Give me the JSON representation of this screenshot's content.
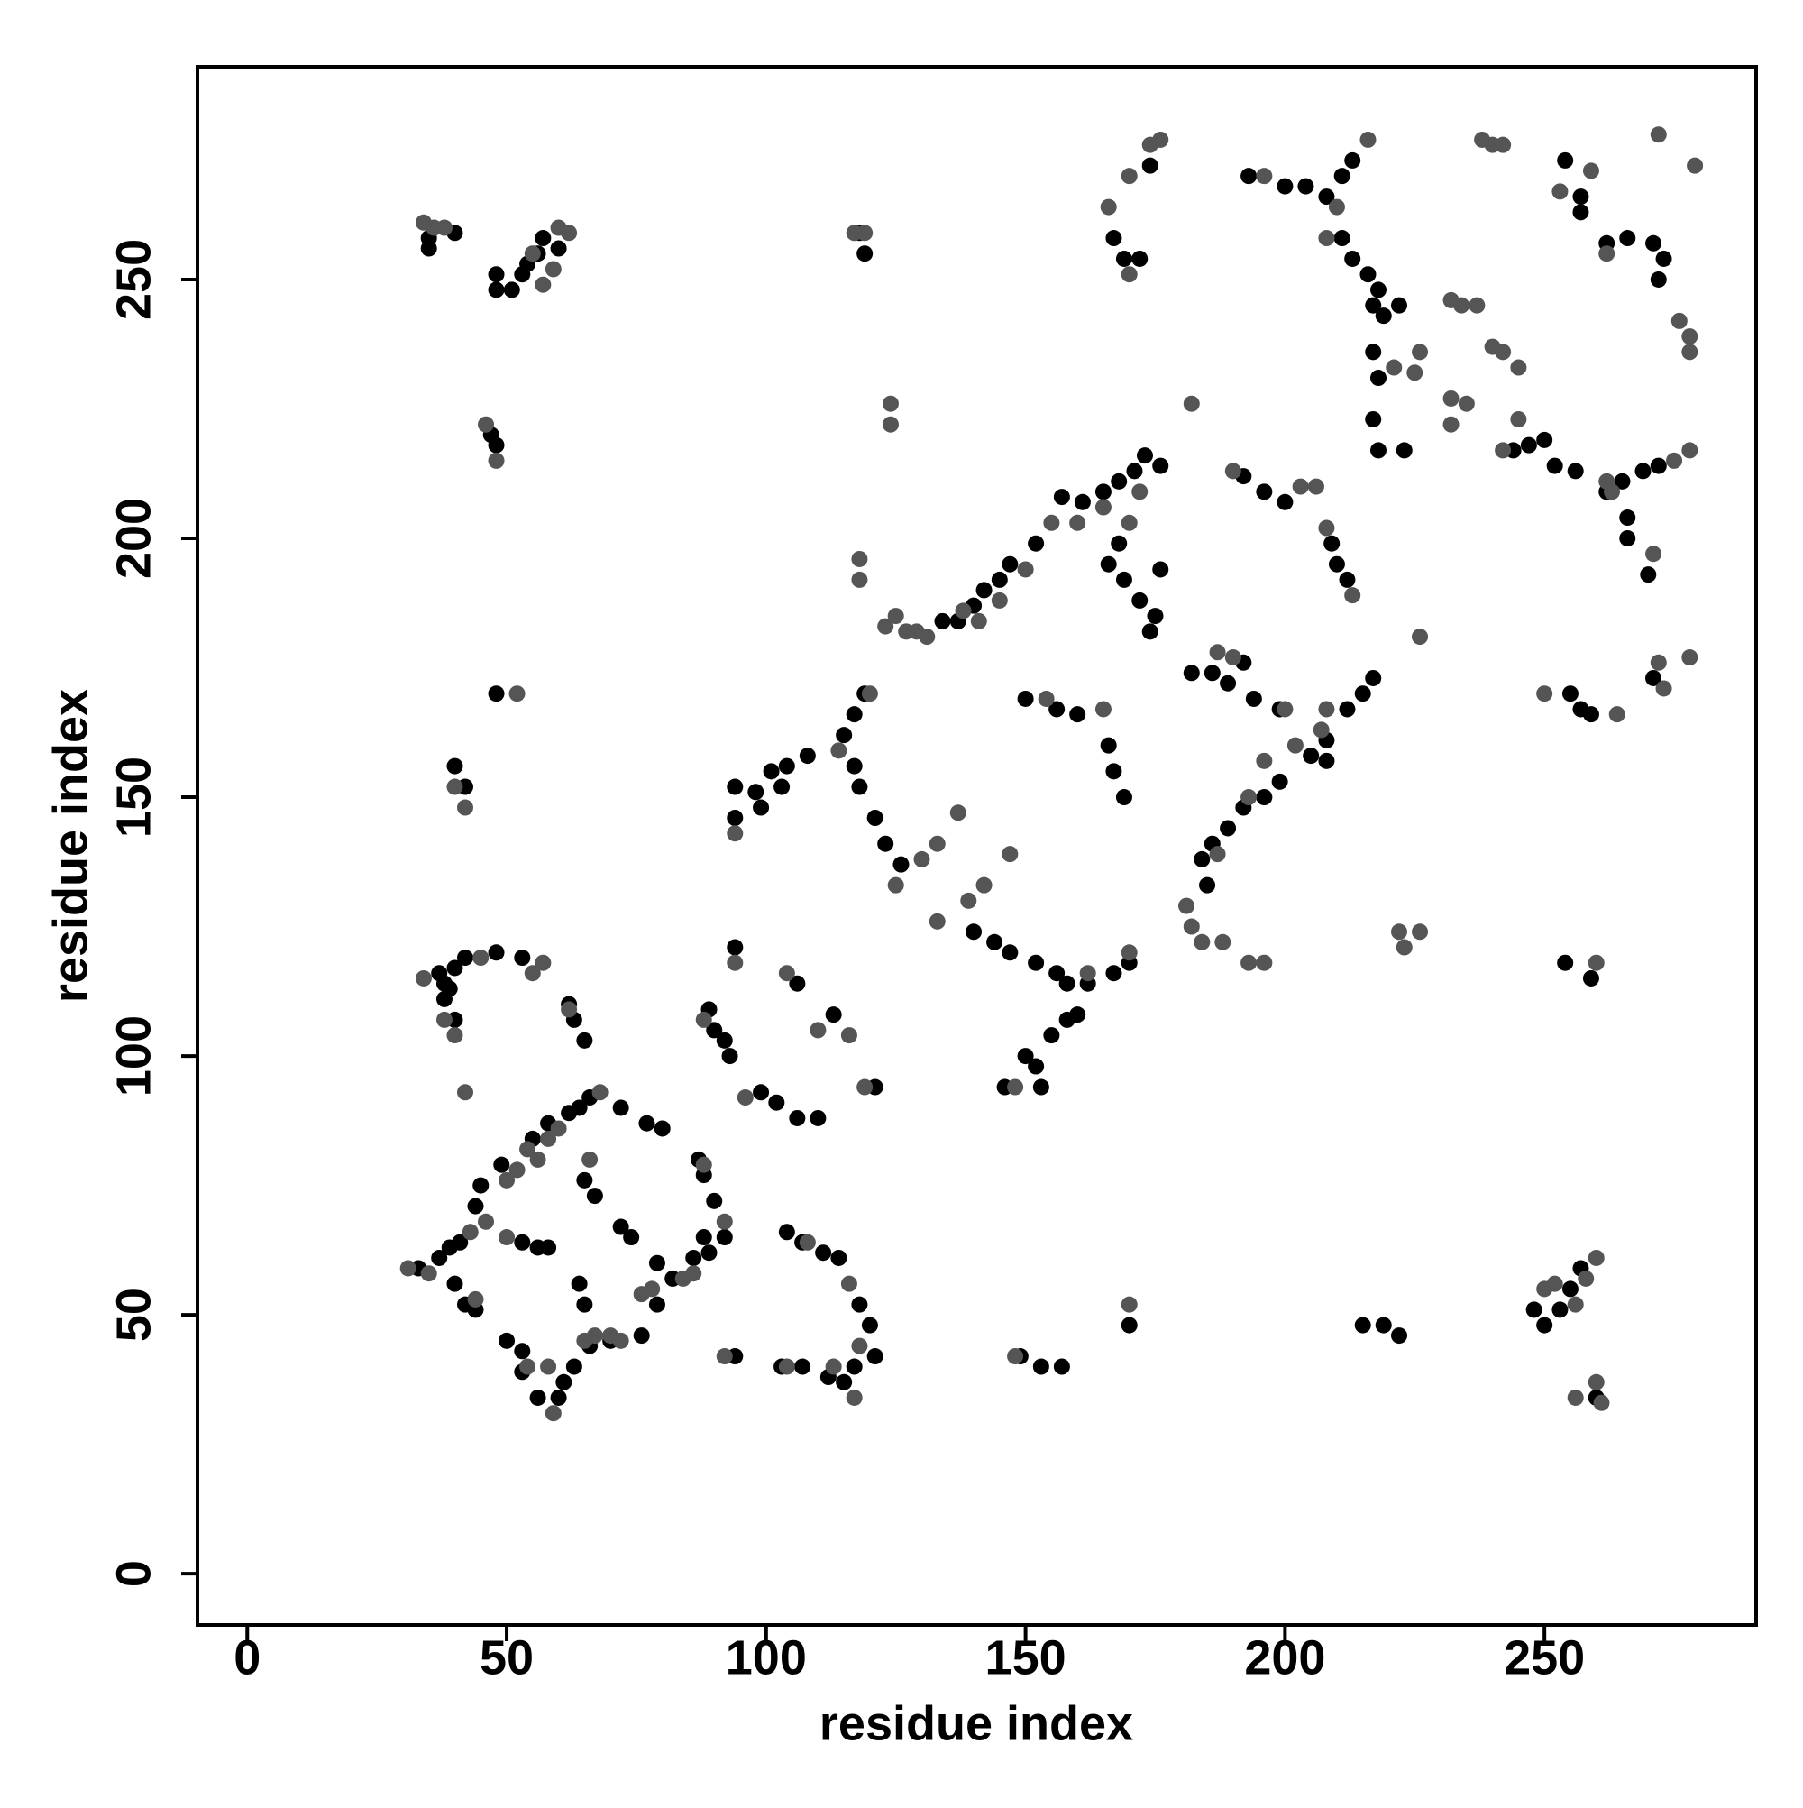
{
  "chart_data": {
    "type": "scatter",
    "xlabel": "residue index",
    "ylabel": "residue index",
    "xlim": [
      -9.6,
      290.8
    ],
    "ylim": [
      -9.9,
      291.1
    ],
    "xticks": [
      0,
      50,
      100,
      150,
      200,
      250
    ],
    "yticks": [
      0,
      50,
      100,
      150,
      200,
      250
    ],
    "series": [
      {
        "color": "#000000",
        "x": [
          35,
          40,
          35,
          48,
          48,
          51,
          53,
          54,
          56,
          60,
          57,
          47,
          48,
          118,
          119,
          48,
          40,
          42,
          37,
          38,
          39,
          38,
          40,
          42,
          48,
          53,
          62,
          63,
          65,
          40,
          33,
          37,
          39,
          41,
          44,
          45,
          49,
          55,
          58,
          62,
          64,
          66,
          72,
          77,
          80,
          87,
          88,
          90,
          88,
          86,
          82,
          79,
          76,
          70,
          66,
          63,
          61,
          60,
          56,
          53,
          53,
          50,
          44,
          42,
          40,
          53,
          56,
          58,
          64,
          65,
          65,
          67,
          72,
          74,
          79,
          92,
          89,
          94,
          89,
          90,
          92,
          93,
          99,
          102,
          106,
          110,
          104,
          107,
          111,
          114,
          118,
          120,
          121,
          117,
          115,
          112,
          107,
          103,
          94,
          106,
          113,
          121,
          94,
          98,
          101,
          104,
          108,
          103,
          99,
          94,
          115,
          117,
          119,
          117,
          118,
          121,
          123,
          126,
          134,
          137,
          140,
          142,
          145,
          147,
          152,
          157,
          161,
          165,
          168,
          171,
          173,
          176,
          166,
          169,
          172,
          175,
          174,
          176,
          168,
          172,
          167,
          169,
          174,
          193,
          200,
          204,
          208,
          211,
          213,
          211,
          213,
          216,
          218,
          217,
          219,
          217,
          217,
          218,
          244,
          247,
          250,
          252,
          256,
          262,
          265,
          269,
          272,
          266,
          266,
          270,
          254,
          257,
          257,
          262,
          266,
          271,
          273,
          272,
          192,
          196,
          200,
          209,
          210,
          212,
          186,
          189,
          192,
          194,
          199,
          182,
          208,
          212,
          215,
          217,
          208,
          205,
          199,
          196,
          192,
          189,
          186,
          184,
          185,
          150,
          156,
          160,
          166,
          167,
          169,
          140,
          144,
          147,
          152,
          156,
          158,
          162,
          167,
          170,
          150,
          152,
          155,
          158,
          160,
          146,
          153,
          149,
          157,
          153,
          170,
          215,
          219,
          222,
          248,
          250,
          253,
          255,
          257,
          260,
          254,
          259,
          255,
          257,
          259,
          271,
          223,
          218,
          222
        ],
        "values": [
          258,
          259,
          256,
          251,
          248,
          248,
          251,
          253,
          255,
          256,
          258,
          220,
          218,
          259,
          255,
          170,
          156,
          152,
          116,
          114,
          113,
          111,
          117,
          119,
          120,
          119,
          110,
          107,
          103,
          107,
          59,
          61,
          63,
          64,
          71,
          75,
          79,
          84,
          87,
          89,
          90,
          92,
          90,
          87,
          86,
          80,
          77,
          72,
          65,
          61,
          57,
          52,
          46,
          45,
          44,
          40,
          37,
          34,
          34,
          39,
          43,
          45,
          51,
          52,
          56,
          64,
          63,
          63,
          56,
          52,
          76,
          73,
          67,
          65,
          60,
          65,
          62,
          121,
          109,
          105,
          103,
          100,
          93,
          91,
          88,
          88,
          66,
          64,
          62,
          61,
          52,
          48,
          42,
          40,
          37,
          38,
          40,
          40,
          42,
          114,
          108,
          94,
          152,
          151,
          155,
          156,
          158,
          152,
          148,
          146,
          162,
          166,
          170,
          156,
          152,
          146,
          141,
          137,
          184,
          184,
          187,
          190,
          192,
          195,
          199,
          208,
          207,
          209,
          211,
          213,
          216,
          214,
          195,
          192,
          188,
          185,
          182,
          194,
          199,
          254,
          258,
          254,
          272,
          270,
          268,
          268,
          266,
          270,
          273,
          258,
          254,
          251,
          248,
          245,
          243,
          236,
          223,
          217,
          217,
          218,
          219,
          214,
          213,
          209,
          211,
          213,
          214,
          204,
          200,
          193,
          273,
          266,
          263,
          257,
          258,
          257,
          254,
          250,
          212,
          209,
          207,
          199,
          195,
          192,
          174,
          172,
          176,
          169,
          167,
          174,
          161,
          167,
          170,
          173,
          157,
          158,
          153,
          150,
          148,
          144,
          141,
          138,
          133,
          169,
          167,
          166,
          160,
          155,
          150,
          124,
          122,
          120,
          118,
          116,
          114,
          114,
          116,
          118,
          100,
          98,
          104,
          107,
          108,
          94,
          94,
          42,
          40,
          40,
          48,
          48,
          48,
          46,
          51,
          48,
          51,
          55,
          59,
          34,
          118,
          115,
          170,
          167,
          166,
          173,
          217,
          231,
          245
        ]
      },
      {
        "color": "#555555",
        "x": [
          34,
          36,
          38,
          55,
          57,
          59,
          60,
          62,
          46,
          48,
          117,
          119,
          124,
          124,
          52,
          40,
          42,
          34,
          38,
          40,
          45,
          55,
          57,
          62,
          42,
          31,
          35,
          43,
          46,
          50,
          52,
          54,
          56,
          58,
          60,
          66,
          68,
          70,
          72,
          76,
          78,
          84,
          86,
          88,
          92,
          59,
          58,
          65,
          67,
          54,
          44,
          50,
          88,
          94,
          96,
          104,
          110,
          116,
          119,
          94,
          92,
          104,
          108,
          116,
          117,
          113,
          118,
          114,
          120,
          118,
          118,
          123,
          125,
          127,
          129,
          131,
          138,
          141,
          145,
          150,
          155,
          160,
          165,
          170,
          172,
          125,
          130,
          133,
          137,
          133,
          139,
          142,
          147,
          154,
          165,
          170,
          162,
          148,
          148,
          170,
          166,
          170,
          176,
          170,
          174,
          196,
          210,
          208,
          216,
          206,
          203,
          190,
          182,
          208,
          213,
          187,
          190,
          200,
          202,
          207,
          196,
          193,
          187,
          181,
          182,
          184,
          188,
          193,
          196,
          226,
          222,
          226,
          221,
          225,
          226,
          232,
          234,
          237,
          240,
          242,
          245,
          232,
          235,
          245,
          242,
          238,
          240,
          242,
          253,
          259,
          262,
          272,
          276,
          278,
          278,
          279,
          262,
          263,
          275,
          278,
          271,
          272,
          278,
          273,
          250,
          260,
          258,
          256,
          252,
          250,
          256,
          261,
          260,
          260,
          264,
          232,
          208,
          223
        ],
        "values": [
          261,
          260,
          260,
          255,
          249,
          252,
          260,
          259,
          222,
          215,
          259,
          259,
          226,
          222,
          170,
          152,
          148,
          115,
          107,
          104,
          119,
          116,
          118,
          109,
          93,
          59,
          58,
          66,
          68,
          65,
          78,
          82,
          80,
          84,
          86,
          80,
          93,
          46,
          45,
          54,
          55,
          57,
          58,
          79,
          68,
          31,
          40,
          45,
          46,
          40,
          53,
          76,
          107,
          118,
          92,
          116,
          105,
          104,
          94,
          143,
          42,
          40,
          64,
          56,
          34,
          40,
          44,
          159,
          170,
          196,
          192,
          183,
          185,
          182,
          182,
          181,
          186,
          184,
          188,
          194,
          203,
          203,
          206,
          203,
          209,
          133,
          138,
          141,
          147,
          126,
          130,
          133,
          139,
          169,
          167,
          120,
          116,
          94,
          42,
          52,
          264,
          270,
          277,
          251,
          276,
          270,
          264,
          258,
          277,
          210,
          210,
          213,
          226,
          202,
          189,
          178,
          177,
          167,
          160,
          163,
          157,
          150,
          139,
          129,
          125,
          122,
          122,
          118,
          118,
          181,
          124,
          124,
          233,
          232,
          236,
          246,
          245,
          245,
          237,
          236,
          233,
          227,
          226,
          223,
          217,
          277,
          276,
          276,
          267,
          271,
          255,
          278,
          242,
          239,
          236,
          272,
          211,
          209,
          215,
          217,
          197,
          176,
          177,
          171,
          170,
          61,
          57,
          52,
          56,
          55,
          34,
          33,
          37,
          118,
          166,
          222,
          167,
          121
        ]
      }
    ]
  }
}
